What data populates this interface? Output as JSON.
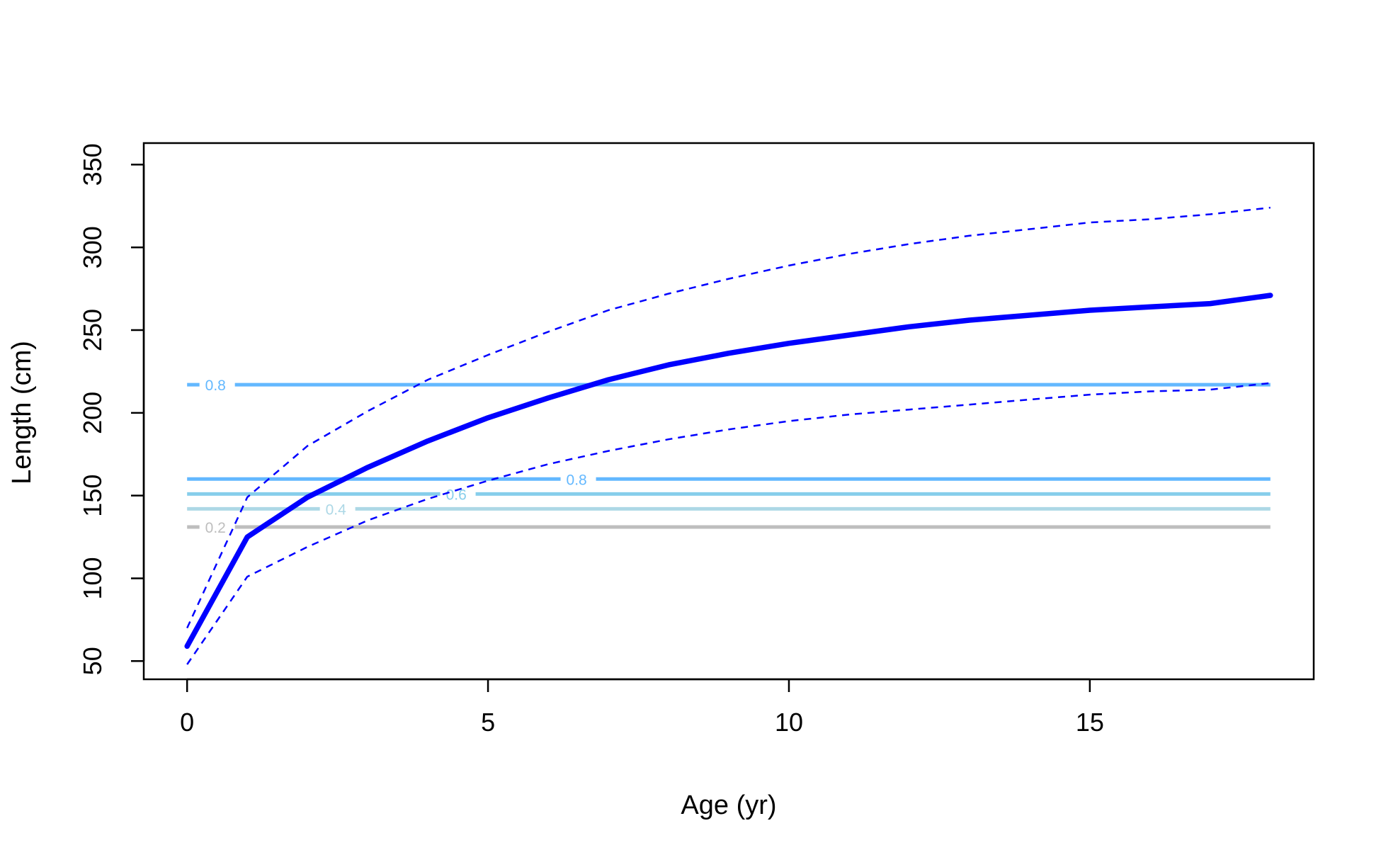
{
  "chart_data": {
    "type": "line",
    "title": "",
    "xlabel": "Age (yr)",
    "ylabel": "Length (cm)",
    "xlim": [
      -0.72,
      18.72
    ],
    "ylim": [
      39,
      363
    ],
    "x_ticks": [
      {
        "value": 0,
        "label": "0"
      },
      {
        "value": 5,
        "label": "5"
      },
      {
        "value": 10,
        "label": "10"
      },
      {
        "value": 15,
        "label": "15"
      }
    ],
    "y_ticks": [
      {
        "value": 50,
        "label": "50"
      },
      {
        "value": 100,
        "label": "100"
      },
      {
        "value": 150,
        "label": "150"
      },
      {
        "value": 200,
        "label": "200"
      },
      {
        "value": 250,
        "label": "250"
      },
      {
        "value": 300,
        "label": "300"
      },
      {
        "value": 350,
        "label": "350"
      }
    ],
    "grid": false,
    "legend": "none",
    "series": [
      {
        "style": "solid-thick",
        "color": "#0000ff",
        "x": [
          0,
          1,
          2,
          3,
          4,
          5,
          6,
          7,
          8,
          9,
          10,
          11,
          12,
          13,
          14,
          15,
          16,
          17,
          18
        ],
        "y": [
          59,
          125,
          149,
          167,
          183,
          197,
          209,
          220,
          229,
          236,
          242,
          247,
          252,
          256,
          259,
          262,
          264,
          266,
          271
        ]
      },
      {
        "style": "dashed",
        "color": "#0000ff",
        "x": [
          0,
          1,
          2,
          3,
          4,
          5,
          6,
          7,
          8,
          9,
          10,
          11,
          12,
          13,
          14,
          15,
          16,
          17,
          18
        ],
        "y": [
          70,
          149,
          180,
          201,
          220,
          235,
          249,
          262,
          272,
          281,
          289,
          296,
          302,
          307,
          311,
          315,
          317,
          320,
          324
        ]
      },
      {
        "style": "dashed",
        "color": "#0000ff",
        "x": [
          0,
          1,
          2,
          3,
          4,
          5,
          6,
          7,
          8,
          9,
          10,
          11,
          12,
          13,
          14,
          15,
          16,
          17,
          18
        ],
        "y": [
          48,
          101,
          119,
          135,
          148,
          159,
          169,
          177,
          184,
          190,
          195,
          199,
          202,
          205,
          208,
          211,
          213,
          214,
          218
        ]
      }
    ],
    "reference_lines": [
      {
        "label": "0.2",
        "y": 131,
        "color": "#bebebe",
        "label_x": 0.3
      },
      {
        "label": "0.4",
        "y": 142,
        "color": "#add8e6",
        "label_x": 2.3
      },
      {
        "label": "0.6",
        "y": 151,
        "color": "#87ceeb",
        "label_x": 4.3
      },
      {
        "label": "0.8",
        "y": 160,
        "color": "#63b8ff",
        "label_x": 6.3
      },
      {
        "label": "0.8",
        "y": 217,
        "color": "#63b8ff",
        "label_x": 0.3
      }
    ],
    "reference_x_range": [
      0,
      18
    ]
  }
}
